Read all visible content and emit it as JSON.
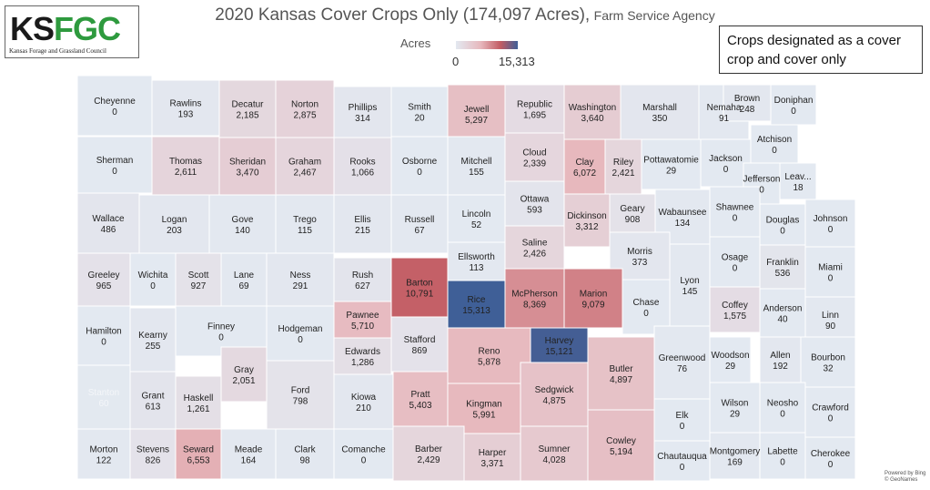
{
  "title": "2020 Kansas Cover Crops Only (174,097 Acres),",
  "subtitle": "Farm Service Agency",
  "logo": {
    "part1": "KS",
    "part2": "FGC",
    "full_name": "Kansas Forage and Grassland Council"
  },
  "legend": {
    "title": "Acres",
    "min_label": "0",
    "max_label": "15,313",
    "min": 0,
    "max": 15313
  },
  "note": "Crops designated as a cover crop and cover only",
  "credit": {
    "line1": "Powered by Bing",
    "line2": "© GeoNames"
  },
  "counties": [
    {
      "name": "Cheyenne",
      "value": 0,
      "label": "0"
    },
    {
      "name": "Rawlins",
      "value": 193,
      "label": "193"
    },
    {
      "name": "Decatur",
      "value": 2185,
      "label": "2,185"
    },
    {
      "name": "Norton",
      "value": 2875,
      "label": "2,875"
    },
    {
      "name": "Phillips",
      "value": 314,
      "label": "314"
    },
    {
      "name": "Smith",
      "value": 20,
      "label": "20"
    },
    {
      "name": "Jewell",
      "value": 5297,
      "label": "5,297"
    },
    {
      "name": "Republic",
      "value": 1695,
      "label": "1,695"
    },
    {
      "name": "Washington",
      "value": 3640,
      "label": "3,640"
    },
    {
      "name": "Marshall",
      "value": 350,
      "label": "350"
    },
    {
      "name": "Nemaha",
      "value": 91,
      "label": "91"
    },
    {
      "name": "Brown",
      "value": 248,
      "label": "248"
    },
    {
      "name": "Doniphan",
      "value": 0,
      "label": "0"
    },
    {
      "name": "Sherman",
      "value": 0,
      "label": "0"
    },
    {
      "name": "Thomas",
      "value": 2611,
      "label": "2,611"
    },
    {
      "name": "Sheridan",
      "value": 3470,
      "label": "3,470"
    },
    {
      "name": "Graham",
      "value": 2467,
      "label": "2,467"
    },
    {
      "name": "Rooks",
      "value": 1066,
      "label": "1,066"
    },
    {
      "name": "Osborne",
      "value": 0,
      "label": "0"
    },
    {
      "name": "Mitchell",
      "value": 155,
      "label": "155"
    },
    {
      "name": "Cloud",
      "value": 2339,
      "label": "2,339"
    },
    {
      "name": "Clay",
      "value": 6072,
      "label": "6,072"
    },
    {
      "name": "Riley",
      "value": 2421,
      "label": "2,421"
    },
    {
      "name": "Pottawatomie",
      "value": 29,
      "label": "29"
    },
    {
      "name": "Jackson",
      "value": 0,
      "label": "0"
    },
    {
      "name": "Atchison",
      "value": 0,
      "label": "0"
    },
    {
      "name": "Jefferson",
      "value": 0,
      "label": "0"
    },
    {
      "name": "Leav...",
      "value": 18,
      "label": "18"
    },
    {
      "name": "Wallace",
      "value": 486,
      "label": "486"
    },
    {
      "name": "Logan",
      "value": 203,
      "label": "203"
    },
    {
      "name": "Gove",
      "value": 140,
      "label": "140"
    },
    {
      "name": "Trego",
      "value": 115,
      "label": "115"
    },
    {
      "name": "Ellis",
      "value": 215,
      "label": "215"
    },
    {
      "name": "Russell",
      "value": 67,
      "label": "67"
    },
    {
      "name": "Lincoln",
      "value": 52,
      "label": "52"
    },
    {
      "name": "Ottawa",
      "value": 593,
      "label": "593"
    },
    {
      "name": "Dickinson",
      "value": 3312,
      "label": "3,312"
    },
    {
      "name": "Geary",
      "value": 908,
      "label": "908"
    },
    {
      "name": "Wabaunsee",
      "value": 134,
      "label": "134"
    },
    {
      "name": "Shawnee",
      "value": 0,
      "label": "0"
    },
    {
      "name": "Douglas",
      "value": 0,
      "label": "0"
    },
    {
      "name": "Johnson",
      "value": 0,
      "label": "0"
    },
    {
      "name": "Greeley",
      "value": 965,
      "label": "965"
    },
    {
      "name": "Wichita",
      "value": 0,
      "label": "0"
    },
    {
      "name": "Scott",
      "value": 927,
      "label": "927"
    },
    {
      "name": "Lane",
      "value": 69,
      "label": "69"
    },
    {
      "name": "Ness",
      "value": 291,
      "label": "291"
    },
    {
      "name": "Rush",
      "value": 627,
      "label": "627"
    },
    {
      "name": "Barton",
      "value": 10791,
      "label": "10,791"
    },
    {
      "name": "Ellsworth",
      "value": 113,
      "label": "113"
    },
    {
      "name": "Saline",
      "value": 2426,
      "label": "2,426"
    },
    {
      "name": "Morris",
      "value": 373,
      "label": "373"
    },
    {
      "name": "Osage",
      "value": 0,
      "label": "0"
    },
    {
      "name": "Franklin",
      "value": 536,
      "label": "536"
    },
    {
      "name": "Miami",
      "value": 0,
      "label": "0"
    },
    {
      "name": "Rice",
      "value": 15313,
      "label": "15,313"
    },
    {
      "name": "McPherson",
      "value": 8369,
      "label": "8,369"
    },
    {
      "name": "Marion",
      "value": 9079,
      "label": "9,079"
    },
    {
      "name": "Chase",
      "value": 0,
      "label": "0"
    },
    {
      "name": "Lyon",
      "value": 145,
      "label": "145"
    },
    {
      "name": "Coffey",
      "value": 1575,
      "label": "1,575"
    },
    {
      "name": "Anderson",
      "value": 40,
      "label": "40"
    },
    {
      "name": "Linn",
      "value": 90,
      "label": "90"
    },
    {
      "name": "Hamilton",
      "value": 0,
      "label": "0"
    },
    {
      "name": "Kearny",
      "value": 255,
      "label": "255"
    },
    {
      "name": "Finney",
      "value": 0,
      "label": "0"
    },
    {
      "name": "Hodgeman",
      "value": 0,
      "label": "0"
    },
    {
      "name": "Pawnee",
      "value": 5710,
      "label": "5,710"
    },
    {
      "name": "Stafford",
      "value": 869,
      "label": "869"
    },
    {
      "name": "Reno",
      "value": 5878,
      "label": "5,878"
    },
    {
      "name": "Harvey",
      "value": 15121,
      "label": "15,121"
    },
    {
      "name": "Butler",
      "value": 4897,
      "label": "4,897"
    },
    {
      "name": "Greenwood",
      "value": 76,
      "label": "76"
    },
    {
      "name": "Woodson",
      "value": 29,
      "label": "29"
    },
    {
      "name": "Allen",
      "value": 192,
      "label": "192"
    },
    {
      "name": "Bourbon",
      "value": 32,
      "label": "32"
    },
    {
      "name": "Edwards",
      "value": 1286,
      "label": "1,286"
    },
    {
      "name": "Gray",
      "value": 2051,
      "label": "2,051"
    },
    {
      "name": "Ford",
      "value": 798,
      "label": "798"
    },
    {
      "name": "Stanton",
      "value": 60,
      "label": "60"
    },
    {
      "name": "Grant",
      "value": 613,
      "label": "613"
    },
    {
      "name": "Haskell",
      "value": 1261,
      "label": "1,261"
    },
    {
      "name": "Kiowa",
      "value": 210,
      "label": "210"
    },
    {
      "name": "Pratt",
      "value": 5403,
      "label": "5,403"
    },
    {
      "name": "Kingman",
      "value": 5991,
      "label": "5,991"
    },
    {
      "name": "Sedgwick",
      "value": 4875,
      "label": "4,875"
    },
    {
      "name": "Elk",
      "value": 0,
      "label": "0"
    },
    {
      "name": "Wilson",
      "value": 29,
      "label": "29"
    },
    {
      "name": "Neosho",
      "value": 0,
      "label": "0"
    },
    {
      "name": "Crawford",
      "value": 0,
      "label": "0"
    },
    {
      "name": "Morton",
      "value": 122,
      "label": "122"
    },
    {
      "name": "Stevens",
      "value": 826,
      "label": "826"
    },
    {
      "name": "Seward",
      "value": 6553,
      "label": "6,553"
    },
    {
      "name": "Meade",
      "value": 164,
      "label": "164"
    },
    {
      "name": "Clark",
      "value": 98,
      "label": "98"
    },
    {
      "name": "Comanche",
      "value": 0,
      "label": "0"
    },
    {
      "name": "Barber",
      "value": 2429,
      "label": "2,429"
    },
    {
      "name": "Harper",
      "value": 3371,
      "label": "3,371"
    },
    {
      "name": "Sumner",
      "value": 4028,
      "label": "4,028"
    },
    {
      "name": "Cowley",
      "value": 5194,
      "label": "5,194"
    },
    {
      "name": "Chautauqua",
      "value": 0,
      "label": "0"
    },
    {
      "name": "Montgomery",
      "value": 169,
      "label": "169"
    },
    {
      "name": "Labette",
      "value": 0,
      "label": "0"
    },
    {
      "name": "Cherokee",
      "value": 0,
      "label": "0"
    }
  ]
}
